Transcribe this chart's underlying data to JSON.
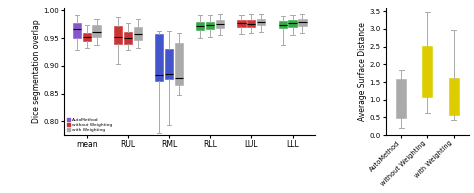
{
  "left_title": "Dice segmentation overlap",
  "right_title": "Average Surface Distance",
  "left_xlabels": [
    "mean",
    "RUL",
    "RML",
    "RLL",
    "LUL",
    "LLL"
  ],
  "right_xlabels": [
    "AutoMethod",
    "without Weighting",
    "with Weighting"
  ],
  "left_ylim": [
    0.775,
    1.005
  ],
  "right_ylim": [
    0.0,
    3.6
  ],
  "left_yticks": [
    0.8,
    0.85,
    0.9,
    0.95,
    1.0
  ],
  "right_yticks": [
    0.0,
    0.5,
    1.0,
    1.5,
    2.0,
    2.5,
    3.0,
    3.5
  ],
  "legend_labels": [
    "AutoMethod",
    "without Weighting",
    "with Weighting"
  ],
  "legend_colors": [
    "#8855cc",
    "#cc3333",
    "#aaaaaa"
  ],
  "left_boxes": {
    "mean": {
      "auto": {
        "whislo": 0.928,
        "q1": 0.95,
        "med": 0.967,
        "q3": 0.978,
        "whishi": 0.991
      },
      "without": {
        "whislo": 0.932,
        "q1": 0.945,
        "med": 0.953,
        "q3": 0.96,
        "whishi": 0.973
      },
      "with": {
        "whislo": 0.938,
        "q1": 0.952,
        "med": 0.962,
        "q3": 0.973,
        "whishi": 0.984
      }
    },
    "RUL": {
      "auto": {
        "whislo": 0.904,
        "q1": 0.94,
        "med": 0.952,
        "q3": 0.972,
        "whishi": 0.988
      },
      "without": {
        "whislo": 0.928,
        "q1": 0.94,
        "med": 0.95,
        "q3": 0.962,
        "whishi": 0.977
      },
      "with": {
        "whislo": 0.932,
        "q1": 0.947,
        "med": 0.958,
        "q3": 0.97,
        "whishi": 0.984
      }
    },
    "RML": {
      "auto": {
        "whislo": 0.778,
        "q1": 0.872,
        "med": 0.883,
        "q3": 0.958,
        "whishi": 0.963
      },
      "without": {
        "whislo": 0.793,
        "q1": 0.876,
        "med": 0.885,
        "q3": 0.93,
        "whishi": 0.963
      },
      "with": {
        "whislo": 0.848,
        "q1": 0.865,
        "med": 0.878,
        "q3": 0.942,
        "whishi": 0.96
      }
    },
    "RLL": {
      "auto": {
        "whislo": 0.95,
        "q1": 0.965,
        "med": 0.972,
        "q3": 0.98,
        "whishi": 0.991
      },
      "without": {
        "whislo": 0.952,
        "q1": 0.966,
        "med": 0.973,
        "q3": 0.98,
        "whishi": 0.991
      },
      "with": {
        "whislo": 0.956,
        "q1": 0.969,
        "med": 0.976,
        "q3": 0.982,
        "whishi": 0.993
      }
    },
    "LUL": {
      "auto": {
        "whislo": 0.958,
        "q1": 0.97,
        "med": 0.977,
        "q3": 0.983,
        "whishi": 0.991
      },
      "without": {
        "whislo": 0.96,
        "q1": 0.97,
        "med": 0.976,
        "q3": 0.982,
        "whishi": 0.993
      },
      "with": {
        "whislo": 0.962,
        "q1": 0.973,
        "med": 0.979,
        "q3": 0.985,
        "whishi": 0.994
      }
    },
    "LLL": {
      "auto": {
        "whislo": 0.938,
        "q1": 0.968,
        "med": 0.974,
        "q3": 0.981,
        "whishi": 0.99
      },
      "without": {
        "whislo": 0.956,
        "q1": 0.971,
        "med": 0.977,
        "q3": 0.982,
        "whishi": 0.992
      },
      "with": {
        "whislo": 0.96,
        "q1": 0.972,
        "med": 0.979,
        "q3": 0.984,
        "whishi": 0.993
      }
    }
  },
  "left_group_colors": {
    "mean": [
      "#8855cc",
      "#cc3333",
      "#aaaaaa"
    ],
    "RUL": [
      "#cc3333",
      "#cc3333",
      "#aaaaaa"
    ],
    "RML": [
      "#4455cc",
      "#4455cc",
      "#aaaaaa"
    ],
    "RLL": [
      "#33aa44",
      "#33aa44",
      "#aaaaaa"
    ],
    "LUL": [
      "#cc3333",
      "#cc3333",
      "#aaaaaa"
    ],
    "LLL": [
      "#33aa44",
      "#33aa44",
      "#aaaaaa"
    ]
  },
  "right_boxes": {
    "AutoMethod": {
      "whislo": 0.2,
      "q1": 0.48,
      "med": 0.82,
      "q3": 1.58,
      "whishi": 1.83
    },
    "without Weighting": {
      "whislo": 0.62,
      "q1": 1.08,
      "med": 1.55,
      "q3": 2.52,
      "whishi": 3.48
    },
    "with Weighting": {
      "whislo": 0.42,
      "q1": 0.56,
      "med": 0.98,
      "q3": 1.62,
      "whishi": 2.98
    }
  },
  "right_colors": [
    "#aaaaaa",
    "#ddcc00",
    "#ddcc00"
  ],
  "right_median_colors": [
    "#aaaaaa",
    "#ddcc00",
    "#ddcc00"
  ],
  "right_whisker_colors": [
    "#aaaaaa",
    "#aaaaaa",
    "#aaaaaa"
  ]
}
